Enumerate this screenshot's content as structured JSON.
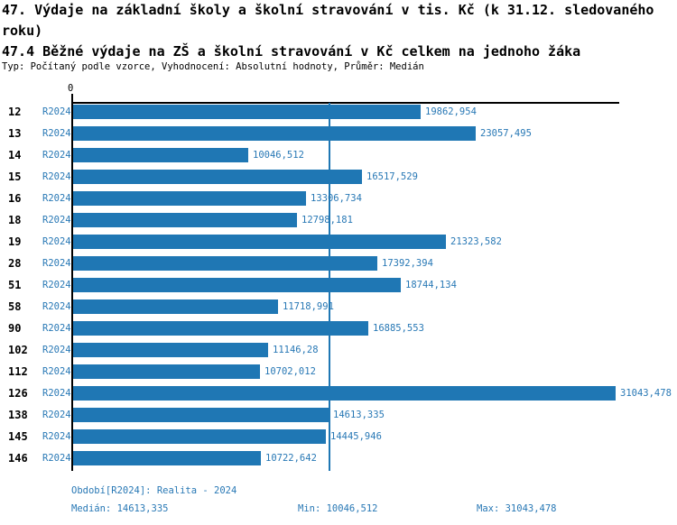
{
  "header": {
    "title_line1": "47. Výdaje na základní školy a školní stravování v tis. Kč (k 31.12. sledovaného roku)",
    "title_line2": "47.4 Běžné výdaje na ZŠ a školní stravování v Kč celkem na jednoho žáka",
    "meta": "Typ: Počítaný podle vzorce, Vyhodnocení: Absolutní hodnoty, Průměr: Medián"
  },
  "chart_data": {
    "type": "bar",
    "orientation": "horizontal",
    "title": "47.4 Běžné výdaje na ZŠ a školní stravování v Kč celkem na jednoho žáka",
    "series_label": "R2024",
    "categories": [
      "12",
      "13",
      "14",
      "15",
      "16",
      "18",
      "19",
      "28",
      "51",
      "58",
      "90",
      "102",
      "112",
      "126",
      "138",
      "145",
      "146"
    ],
    "values": [
      19862.954,
      23057.495,
      10046.512,
      16517.529,
      13306.734,
      12798.181,
      21323.582,
      17392.394,
      18744.134,
      11718.991,
      16885.553,
      11146.28,
      10702.012,
      31043.478,
      14613.335,
      14445.946,
      10722.642
    ],
    "value_labels": [
      "19862,954",
      "23057,495",
      "10046,512",
      "16517,529",
      "13306,734",
      "12798,181",
      "21323,582",
      "17392,394",
      "18744,134",
      "11718,991",
      "16885,553",
      "11146,28",
      "10702,012",
      "31043,478",
      "14613,335",
      "14445,946",
      "10722,642"
    ],
    "axis_zero_label": "0",
    "xlim": [
      0,
      31043.478
    ],
    "median_value": 14613.335,
    "grid": false,
    "legend_position": "none",
    "bar_color": "#1f77b4",
    "median_line_color": "#1f77b4",
    "label_color": "#2878b5"
  },
  "footer": {
    "period": "Období[R2024]: Realita - 2024",
    "median": "Medián: 14613,335",
    "min": "Min: 10046,512",
    "max": "Max: 31043,478"
  }
}
